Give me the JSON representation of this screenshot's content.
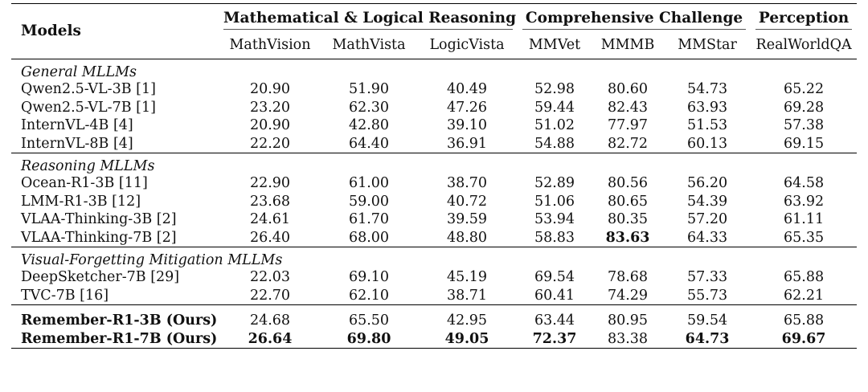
{
  "header": {
    "models_label": "Models",
    "groups": [
      {
        "label": "Mathematical & Logical Reasoning",
        "span": 3
      },
      {
        "label": "Comprehensive Challenge",
        "span": 3
      },
      {
        "label": "Perception",
        "span": 1
      }
    ],
    "columns": [
      "MathVision",
      "MathVista",
      "LogicVista",
      "MMVet",
      "MMMB",
      "MMStar",
      "RealWorldQA"
    ]
  },
  "sections": [
    {
      "label": "General MLLMs",
      "rows": [
        {
          "model": "Qwen2.5-VL-3B [1]",
          "values": [
            "20.90",
            "51.90",
            "40.49",
            "52.98",
            "80.60",
            "54.73",
            "65.22"
          ],
          "bold": []
        },
        {
          "model": "Qwen2.5-VL-7B [1]",
          "values": [
            "23.20",
            "62.30",
            "47.26",
            "59.44",
            "82.43",
            "63.93",
            "69.28"
          ],
          "bold": []
        },
        {
          "model": "InternVL-4B [4]",
          "values": [
            "20.90",
            "42.80",
            "39.10",
            "51.02",
            "77.97",
            "51.53",
            "57.38"
          ],
          "bold": []
        },
        {
          "model": "InternVL-8B [4]",
          "values": [
            "22.20",
            "64.40",
            "36.91",
            "54.88",
            "82.72",
            "60.13",
            "69.15"
          ],
          "bold": []
        }
      ]
    },
    {
      "label": "Reasoning MLLMs",
      "rows": [
        {
          "model": "Ocean-R1-3B [11]",
          "values": [
            "22.90",
            "61.00",
            "38.70",
            "52.89",
            "80.56",
            "56.20",
            "64.58"
          ],
          "bold": []
        },
        {
          "model": "LMM-R1-3B [12]",
          "values": [
            "23.68",
            "59.00",
            "40.72",
            "51.06",
            "80.65",
            "54.39",
            "63.92"
          ],
          "bold": []
        },
        {
          "model": "VLAA-Thinking-3B [2]",
          "values": [
            "24.61",
            "61.70",
            "39.59",
            "53.94",
            "80.35",
            "57.20",
            "61.11"
          ],
          "bold": []
        },
        {
          "model": "VLAA-Thinking-7B [2]",
          "values": [
            "26.40",
            "68.00",
            "48.80",
            "58.83",
            "83.63",
            "64.33",
            "65.35"
          ],
          "bold": [
            4
          ]
        }
      ]
    },
    {
      "label": "Visual-Forgetting Mitigation MLLMs",
      "rows": [
        {
          "model": "DeepSketcher-7B [29]",
          "values": [
            "22.03",
            "69.10",
            "45.19",
            "69.54",
            "78.68",
            "57.33",
            "65.88"
          ],
          "bold": []
        },
        {
          "model": "TVC-7B [16]",
          "values": [
            "22.70",
            "62.10",
            "38.71",
            "60.41",
            "74.29",
            "55.73",
            "62.21"
          ],
          "bold": []
        }
      ]
    }
  ],
  "ours": [
    {
      "model": "Remember-R1-3B (Ours)",
      "values": [
        "24.68",
        "65.50",
        "42.95",
        "63.44",
        "80.95",
        "59.54",
        "65.88"
      ],
      "bold": []
    },
    {
      "model": "Remember-R1-7B (Ours)",
      "values": [
        "26.64",
        "69.80",
        "49.05",
        "72.37",
        "83.38",
        "64.73",
        "69.67"
      ],
      "bold": [
        0,
        1,
        2,
        3,
        5,
        6
      ]
    }
  ]
}
